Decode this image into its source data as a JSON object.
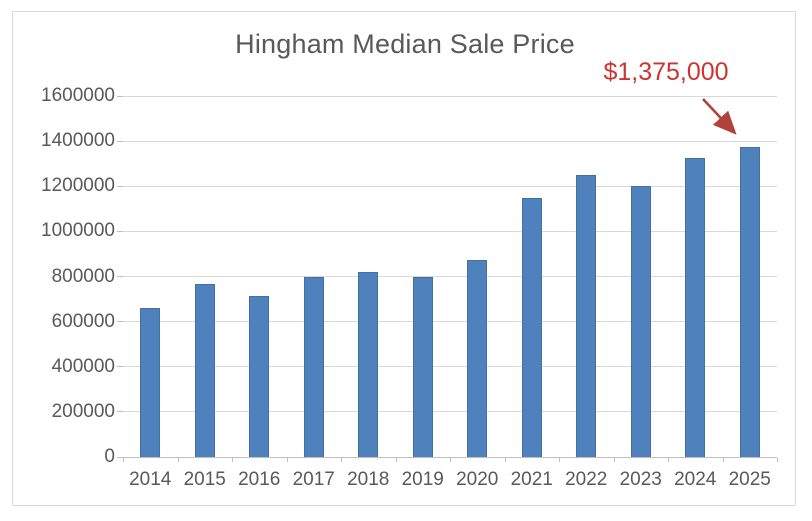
{
  "chart_data": {
    "type": "bar",
    "title": "Hingham Median Sale Price",
    "categories": [
      "2014",
      "2015",
      "2016",
      "2017",
      "2018",
      "2019",
      "2020",
      "2021",
      "2022",
      "2023",
      "2024",
      "2025"
    ],
    "values": [
      660000,
      765000,
      715000,
      800000,
      820000,
      800000,
      875000,
      1150000,
      1250000,
      1200000,
      1325000,
      1375000
    ],
    "xlabel": "",
    "ylabel": "",
    "ylim": [
      0,
      1600000
    ],
    "ytick_step": 200000,
    "ytick_labels": [
      "0",
      "200000",
      "400000",
      "600000",
      "800000",
      "1000000",
      "1200000",
      "1400000",
      "1600000"
    ],
    "grid": true,
    "legend_position": "none",
    "annotation": {
      "text": "$1,375,000",
      "target_category": "2025",
      "text_color": "#cc3432",
      "arrow_color": "#b0413b"
    },
    "colors": {
      "bar_fill": "#4f81bd",
      "bar_edge": "#41719c",
      "gridline": "#d9d9d9",
      "axis_line": "#bfbfbf",
      "text": "#595959",
      "frame_border": "#d9d9d9",
      "background": "#ffffff"
    }
  }
}
